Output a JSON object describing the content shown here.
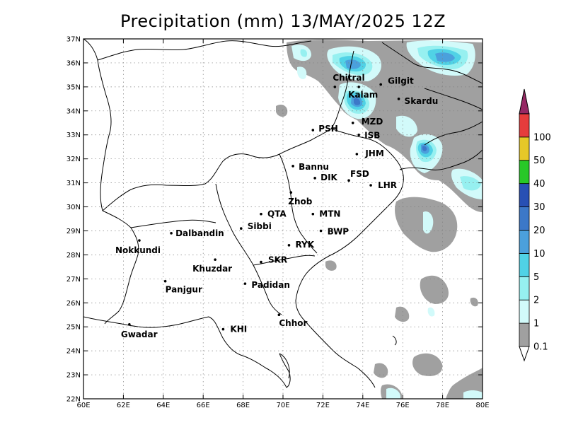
{
  "title": "Precipitation (mm) 13/MAY/2025 12Z",
  "map": {
    "lat_ticks": [
      "22N",
      "23N",
      "24N",
      "25N",
      "26N",
      "27N",
      "28N",
      "29N",
      "30N",
      "31N",
      "32N",
      "33N",
      "34N",
      "35N",
      "36N",
      "37N"
    ],
    "lon_ticks": [
      "60E",
      "62E",
      "64E",
      "66E",
      "68E",
      "70E",
      "72E",
      "74E",
      "76E",
      "78E",
      "80E"
    ],
    "lat_range": [
      22,
      37
    ],
    "lon_range": [
      60,
      80
    ],
    "grid": true,
    "cities": [
      {
        "name": "Chitral",
        "lon": 72.6,
        "lat": 35.0
      },
      {
        "name": "Gilgit",
        "lon": 74.9,
        "lat": 35.1
      },
      {
        "name": "Kalam",
        "lon": 73.8,
        "lat": 35.0
      },
      {
        "name": "Skardu",
        "lon": 75.8,
        "lat": 34.5
      },
      {
        "name": "MZD",
        "lon": 73.5,
        "lat": 33.5
      },
      {
        "name": "PSH",
        "lon": 71.5,
        "lat": 33.2
      },
      {
        "name": "ISB",
        "lon": 73.8,
        "lat": 33.0
      },
      {
        "name": "JHM",
        "lon": 73.7,
        "lat": 32.2
      },
      {
        "name": "Bannu",
        "lon": 70.5,
        "lat": 31.7
      },
      {
        "name": "DIK",
        "lon": 71.6,
        "lat": 31.2
      },
      {
        "name": "FSD",
        "lon": 73.3,
        "lat": 31.1
      },
      {
        "name": "LHR",
        "lon": 74.4,
        "lat": 30.9
      },
      {
        "name": "Zhob",
        "lon": 70.4,
        "lat": 30.6
      },
      {
        "name": "QTA",
        "lon": 68.9,
        "lat": 29.7
      },
      {
        "name": "MTN",
        "lon": 71.5,
        "lat": 29.7
      },
      {
        "name": "Sibbi",
        "lon": 67.9,
        "lat": 29.1
      },
      {
        "name": "BWP",
        "lon": 71.9,
        "lat": 29.0
      },
      {
        "name": "Dalbandin",
        "lon": 64.4,
        "lat": 28.9
      },
      {
        "name": "Nokkundi",
        "lon": 62.8,
        "lat": 28.6
      },
      {
        "name": "RYK",
        "lon": 70.3,
        "lat": 28.4
      },
      {
        "name": "SKR",
        "lon": 68.9,
        "lat": 27.7
      },
      {
        "name": "Khuzdar",
        "lon": 66.6,
        "lat": 27.8
      },
      {
        "name": "Padidan",
        "lon": 68.1,
        "lat": 26.8
      },
      {
        "name": "Panjgur",
        "lon": 64.1,
        "lat": 26.9
      },
      {
        "name": "Chhor",
        "lon": 69.8,
        "lat": 25.5
      },
      {
        "name": "KHI",
        "lon": 67.0,
        "lat": 24.9
      },
      {
        "name": "Gwadar",
        "lon": 62.3,
        "lat": 25.1
      }
    ]
  },
  "colorbar": {
    "levels": [
      "0.1",
      "1",
      "2",
      "5",
      "10",
      "20",
      "30",
      "40",
      "50",
      "100"
    ],
    "colors": [
      "#a0a0a0",
      "#d2fafa",
      "#96f0f0",
      "#50d2e6",
      "#4ba0dc",
      "#3c78c8",
      "#2850b4",
      "#28c828",
      "#e6c828",
      "#e63c3c",
      "#962864"
    ]
  }
}
